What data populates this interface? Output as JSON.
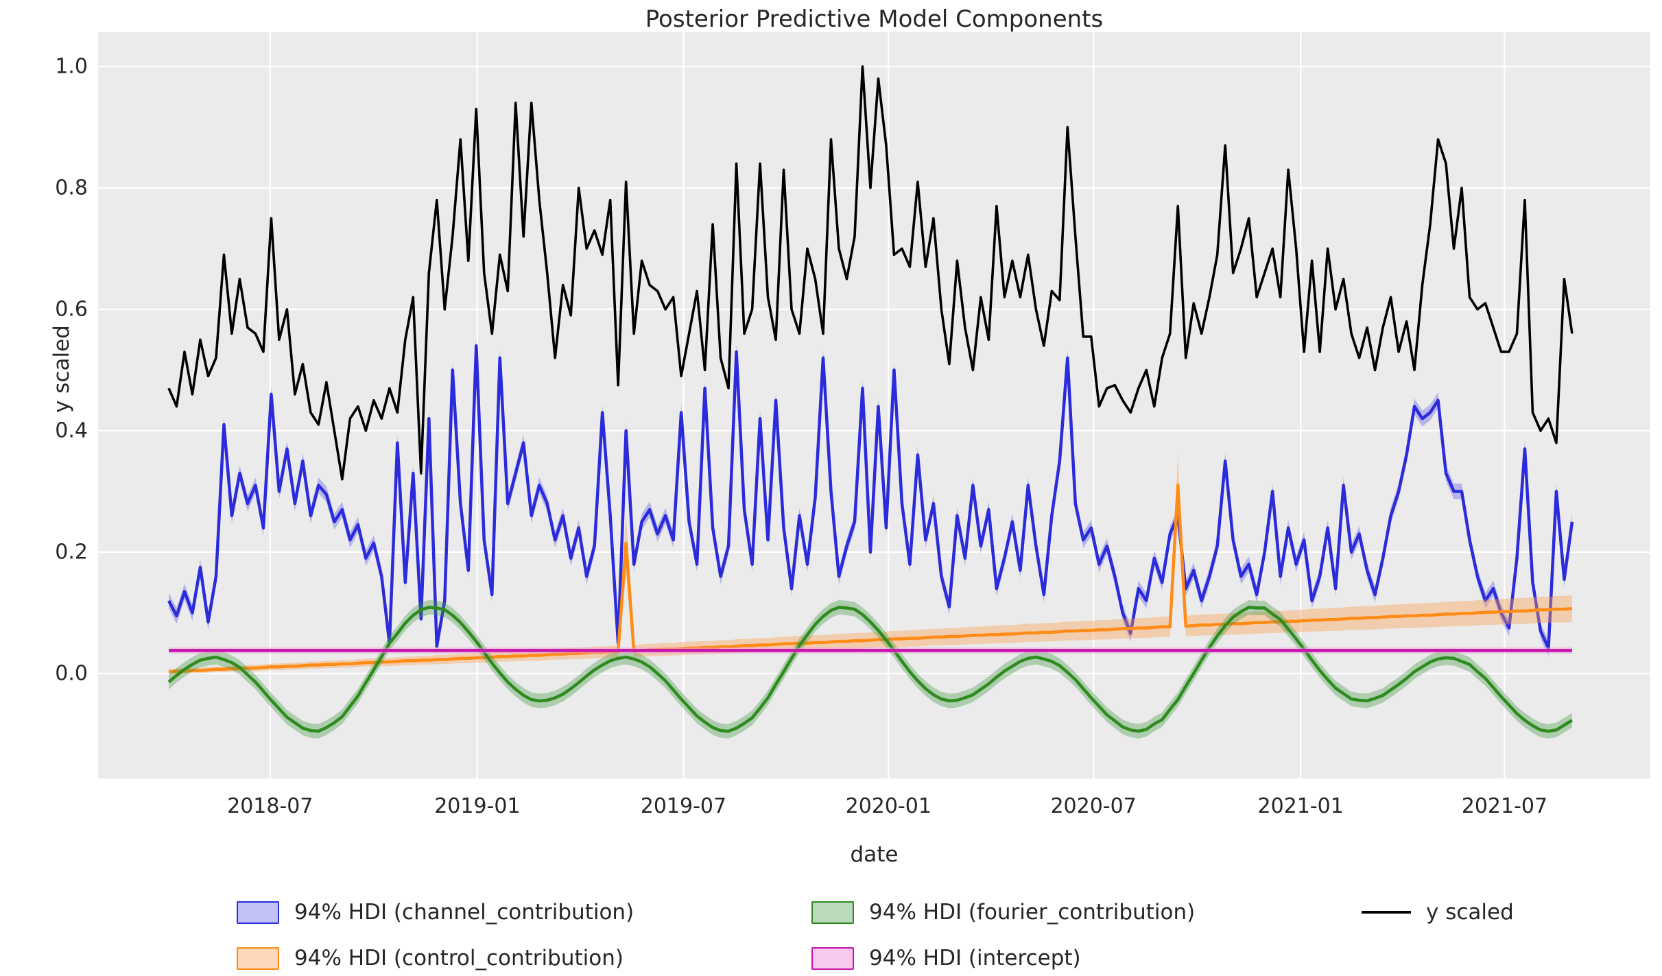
{
  "title": "Posterior Predictive Model Components",
  "axes": {
    "xlabel": "date",
    "ylabel": "y scaled",
    "x_ticks": [
      "2018-07",
      "2019-01",
      "2019-07",
      "2020-01",
      "2020-07",
      "2021-01",
      "2021-07"
    ],
    "x_tick_weeks": [
      12.86,
      39.14,
      65.29,
      91.29,
      117.29,
      143.57,
      169.43
    ],
    "y_ticks": [
      "0.0",
      "0.2",
      "0.4",
      "0.6",
      "0.8",
      "1.0"
    ],
    "y_tick_values": [
      0.0,
      0.2,
      0.4,
      0.6,
      0.8,
      1.0
    ],
    "grid": true,
    "plot_background": "#ebebeb",
    "grid_color": "#ffffff",
    "text_color": "#262626",
    "ylim": [
      -0.173,
      1.056
    ],
    "xlim_dates": [
      "2018-01-29",
      "2021-11-07"
    ]
  },
  "legend": [
    {
      "label": "94% HDI (channel_contribution)",
      "swatch": "patch",
      "fill": "rgba(95,95,235,0.38)",
      "edge": "#2b2bdb"
    },
    {
      "label": "94% HDI (control_contribution)",
      "swatch": "patch",
      "fill": "rgba(253,160,80,0.40)",
      "edge": "#fe8b16"
    },
    {
      "label": "94% HDI (fourier_contribution)",
      "swatch": "patch",
      "fill": "rgba(60,150,60,0.35)",
      "edge": "#2e8b1e"
    },
    {
      "label": "94% HDI (intercept)",
      "swatch": "patch",
      "fill": "rgba(240,150,220,0.50)",
      "edge": "#c513ac"
    },
    {
      "label": "y scaled",
      "swatch": "line",
      "edge": "#000000"
    }
  ],
  "chart_data": {
    "type": "line",
    "x": {
      "start_date": "2018-04-02",
      "freq_days": 7,
      "n": 179
    },
    "series": [
      {
        "name": "channel_contribution",
        "kind": "hdi",
        "line_color": "#2b2bdb",
        "band_color": "rgba(95,95,235,0.38)",
        "hdi_halfwidth": 0.013,
        "values": [
          0.12,
          0.095,
          0.135,
          0.1,
          0.175,
          0.085,
          0.16,
          0.41,
          0.26,
          0.33,
          0.28,
          0.31,
          0.24,
          0.46,
          0.3,
          0.37,
          0.28,
          0.35,
          0.26,
          0.31,
          0.295,
          0.25,
          0.27,
          0.22,
          0.245,
          0.19,
          0.215,
          0.16,
          0.05,
          0.38,
          0.15,
          0.33,
          0.09,
          0.42,
          0.045,
          0.12,
          0.5,
          0.28,
          0.17,
          0.54,
          0.22,
          0.13,
          0.52,
          0.28,
          0.33,
          0.38,
          0.26,
          0.31,
          0.28,
          0.22,
          0.26,
          0.19,
          0.24,
          0.16,
          0.21,
          0.43,
          0.26,
          0.05,
          0.4,
          0.18,
          0.25,
          0.27,
          0.23,
          0.26,
          0.22,
          0.43,
          0.25,
          0.18,
          0.47,
          0.24,
          0.16,
          0.21,
          0.53,
          0.27,
          0.18,
          0.42,
          0.22,
          0.45,
          0.24,
          0.14,
          0.26,
          0.18,
          0.29,
          0.52,
          0.3,
          0.16,
          0.21,
          0.25,
          0.47,
          0.2,
          0.44,
          0.24,
          0.5,
          0.28,
          0.18,
          0.36,
          0.22,
          0.28,
          0.16,
          0.11,
          0.26,
          0.19,
          0.31,
          0.21,
          0.27,
          0.14,
          0.19,
          0.25,
          0.17,
          0.31,
          0.21,
          0.13,
          0.26,
          0.35,
          0.52,
          0.28,
          0.22,
          0.24,
          0.18,
          0.21,
          0.16,
          0.1,
          0.066,
          0.14,
          0.12,
          0.19,
          0.15,
          0.23,
          0.26,
          0.14,
          0.17,
          0.12,
          0.16,
          0.21,
          0.35,
          0.22,
          0.16,
          0.18,
          0.13,
          0.2,
          0.3,
          0.16,
          0.24,
          0.18,
          0.22,
          0.12,
          0.16,
          0.24,
          0.14,
          0.31,
          0.2,
          0.23,
          0.17,
          0.13,
          0.19,
          0.26,
          0.3,
          0.36,
          0.44,
          0.42,
          0.43,
          0.45,
          0.33,
          0.3,
          0.3,
          0.22,
          0.16,
          0.12,
          0.14,
          0.1,
          0.075,
          0.19,
          0.37,
          0.15,
          0.07,
          0.042,
          0.3,
          0.155,
          0.25
        ]
      },
      {
        "name": "control_contribution",
        "kind": "hdi",
        "line_color": "#fe8b16",
        "band_color": "rgba(253,160,80,0.40)",
        "hdi_halfwidth_start": 0.004,
        "hdi_halfwidth_end": 0.022,
        "spike_indices": [
          58,
          128
        ],
        "spike_halfwidth": 0.05,
        "values": [
          0.003,
          0.004,
          0.004,
          0.005,
          0.005,
          0.006,
          0.007,
          0.007,
          0.008,
          0.008,
          0.009,
          0.009,
          0.01,
          0.011,
          0.011,
          0.012,
          0.012,
          0.013,
          0.014,
          0.014,
          0.015,
          0.015,
          0.016,
          0.016,
          0.017,
          0.018,
          0.018,
          0.019,
          0.019,
          0.02,
          0.021,
          0.021,
          0.022,
          0.022,
          0.023,
          0.023,
          0.024,
          0.025,
          0.025,
          0.026,
          0.026,
          0.027,
          0.028,
          0.028,
          0.029,
          0.029,
          0.03,
          0.03,
          0.031,
          0.032,
          0.032,
          0.033,
          0.033,
          0.034,
          0.035,
          0.035,
          0.036,
          0.036,
          0.215,
          0.037,
          0.038,
          0.039,
          0.039,
          0.04,
          0.04,
          0.041,
          0.042,
          0.042,
          0.043,
          0.043,
          0.044,
          0.044,
          0.045,
          0.046,
          0.046,
          0.047,
          0.047,
          0.048,
          0.049,
          0.049,
          0.05,
          0.05,
          0.051,
          0.051,
          0.052,
          0.053,
          0.053,
          0.054,
          0.054,
          0.055,
          0.056,
          0.056,
          0.057,
          0.057,
          0.058,
          0.058,
          0.059,
          0.06,
          0.06,
          0.061,
          0.061,
          0.062,
          0.063,
          0.063,
          0.064,
          0.064,
          0.065,
          0.065,
          0.066,
          0.067,
          0.067,
          0.068,
          0.068,
          0.069,
          0.07,
          0.07,
          0.071,
          0.071,
          0.072,
          0.072,
          0.073,
          0.074,
          0.074,
          0.075,
          0.075,
          0.076,
          0.077,
          0.077,
          0.31,
          0.078,
          0.079,
          0.08,
          0.08,
          0.081,
          0.081,
          0.082,
          0.082,
          0.083,
          0.084,
          0.084,
          0.085,
          0.085,
          0.086,
          0.086,
          0.087,
          0.088,
          0.088,
          0.089,
          0.089,
          0.09,
          0.091,
          0.091,
          0.092,
          0.092,
          0.093,
          0.094,
          0.094,
          0.095,
          0.095,
          0.096,
          0.096,
          0.097,
          0.098,
          0.098,
          0.099,
          0.099,
          0.1,
          0.101,
          0.101,
          0.102,
          0.102,
          0.103,
          0.103,
          0.104,
          0.105,
          0.105,
          0.106,
          0.106,
          0.107
        ]
      },
      {
        "name": "fourier_contribution",
        "kind": "hdi",
        "line_color": "#2e8b1e",
        "band_color": "rgba(60,150,60,0.35)",
        "hdi_halfwidth": 0.012,
        "values": [
          -0.014,
          -0.003,
          0.007,
          0.015,
          0.022,
          0.025,
          0.027,
          0.023,
          0.018,
          0.01,
          -0.002,
          -0.014,
          -0.029,
          -0.044,
          -0.058,
          -0.072,
          -0.081,
          -0.09,
          -0.094,
          -0.095,
          -0.089,
          -0.081,
          -0.071,
          -0.054,
          -0.037,
          -0.015,
          0.006,
          0.028,
          0.05,
          0.066,
          0.083,
          0.096,
          0.105,
          0.109,
          0.108,
          0.105,
          0.096,
          0.084,
          0.069,
          0.053,
          0.035,
          0.017,
          0.001,
          -0.014,
          -0.026,
          -0.036,
          -0.043,
          -0.045,
          -0.044,
          -0.04,
          -0.034,
          -0.025,
          -0.015,
          -0.004,
          0.006,
          0.014,
          0.021,
          0.025,
          0.027,
          0.024,
          0.019,
          0.011,
          0.0,
          -0.012,
          -0.027,
          -0.042,
          -0.056,
          -0.07,
          -0.08,
          -0.089,
          -0.094,
          -0.095,
          -0.09,
          -0.082,
          -0.073,
          -0.057,
          -0.04,
          -0.018,
          0.003,
          0.025,
          0.046,
          0.064,
          0.081,
          0.094,
          0.104,
          0.109,
          0.108,
          0.106,
          0.097,
          0.085,
          0.071,
          0.055,
          0.038,
          0.02,
          0.003,
          -0.012,
          -0.025,
          -0.035,
          -0.042,
          -0.045,
          -0.044,
          -0.04,
          -0.035,
          -0.026,
          -0.017,
          -0.006,
          0.004,
          0.012,
          0.02,
          0.025,
          0.027,
          0.024,
          0.02,
          0.013,
          0.002,
          -0.01,
          -0.025,
          -0.04,
          -0.054,
          -0.068,
          -0.078,
          -0.088,
          -0.093,
          -0.095,
          -0.092,
          -0.083,
          -0.076,
          -0.059,
          -0.043,
          -0.021,
          0.0,
          0.022,
          0.043,
          0.062,
          0.079,
          0.093,
          0.102,
          0.109,
          0.108,
          0.108,
          0.098,
          0.089,
          0.073,
          0.057,
          0.04,
          0.022,
          0.005,
          -0.01,
          -0.024,
          -0.033,
          -0.042,
          -0.044,
          -0.045,
          -0.041,
          -0.036,
          -0.027,
          -0.018,
          -0.008,
          0.003,
          0.011,
          0.019,
          0.024,
          0.026,
          0.025,
          0.02,
          0.015,
          0.003,
          -0.008,
          -0.023,
          -0.038,
          -0.052,
          -0.066,
          -0.077,
          -0.086,
          -0.093,
          -0.095,
          -0.093,
          -0.085,
          -0.077
        ]
      },
      {
        "name": "intercept",
        "kind": "hdi",
        "line_color": "#c513ac",
        "band_color": "rgba(240,150,220,0.50)",
        "hdi_halfwidth": 0.005,
        "constant_value": 0.038
      },
      {
        "name": "y scaled",
        "kind": "line",
        "line_color": "#000000",
        "values": [
          0.47,
          0.44,
          0.53,
          0.46,
          0.55,
          0.49,
          0.52,
          0.69,
          0.56,
          0.65,
          0.57,
          0.56,
          0.53,
          0.75,
          0.55,
          0.6,
          0.46,
          0.51,
          0.43,
          0.41,
          0.48,
          0.4,
          0.32,
          0.42,
          0.44,
          0.4,
          0.45,
          0.42,
          0.47,
          0.43,
          0.55,
          0.62,
          0.33,
          0.66,
          0.78,
          0.6,
          0.72,
          0.88,
          0.68,
          0.93,
          0.66,
          0.56,
          0.69,
          0.63,
          0.94,
          0.72,
          0.94,
          0.78,
          0.66,
          0.52,
          0.64,
          0.59,
          0.8,
          0.7,
          0.73,
          0.69,
          0.78,
          0.475,
          0.81,
          0.56,
          0.68,
          0.64,
          0.63,
          0.6,
          0.62,
          0.49,
          0.56,
          0.63,
          0.5,
          0.74,
          0.52,
          0.47,
          0.84,
          0.56,
          0.6,
          0.84,
          0.62,
          0.55,
          0.83,
          0.6,
          0.56,
          0.7,
          0.65,
          0.56,
          0.88,
          0.7,
          0.65,
          0.72,
          1.0,
          0.8,
          0.98,
          0.87,
          0.69,
          0.7,
          0.67,
          0.81,
          0.67,
          0.75,
          0.6,
          0.51,
          0.68,
          0.57,
          0.5,
          0.62,
          0.55,
          0.77,
          0.62,
          0.68,
          0.62,
          0.69,
          0.6,
          0.54,
          0.63,
          0.615,
          0.9,
          0.72,
          0.555,
          0.555,
          0.44,
          0.47,
          0.475,
          0.45,
          0.43,
          0.47,
          0.5,
          0.44,
          0.52,
          0.56,
          0.77,
          0.52,
          0.61,
          0.56,
          0.62,
          0.69,
          0.87,
          0.66,
          0.7,
          0.75,
          0.62,
          0.66,
          0.7,
          0.62,
          0.83,
          0.7,
          0.53,
          0.68,
          0.53,
          0.7,
          0.6,
          0.65,
          0.56,
          0.52,
          0.57,
          0.5,
          0.57,
          0.62,
          0.53,
          0.58,
          0.5,
          0.64,
          0.74,
          0.88,
          0.84,
          0.7,
          0.8,
          0.62,
          0.6,
          0.61,
          0.57,
          0.53,
          0.53,
          0.56,
          0.78,
          0.43,
          0.4,
          0.42,
          0.38,
          0.65,
          0.56
        ]
      }
    ]
  }
}
